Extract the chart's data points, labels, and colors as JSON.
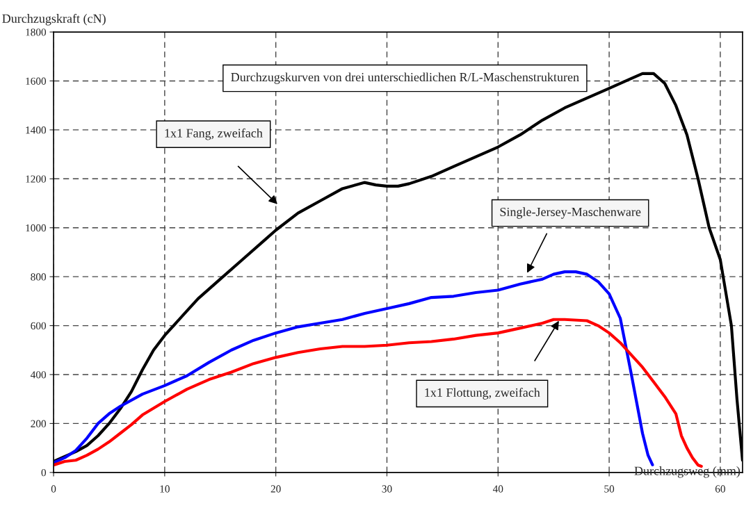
{
  "chart_data": {
    "type": "line",
    "title": "Durchzugskurven von drei unterschiedlichen R/L-Maschenstrukturen",
    "xlabel": "Durchzugsweg (mm)",
    "ylabel": "Durchzugskraft (cN)",
    "xlim": [
      0,
      62
    ],
    "xticks": [
      0,
      10,
      20,
      30,
      40,
      50,
      60
    ],
    "ylim": [
      0,
      1800
    ],
    "yticks": [
      0,
      200,
      400,
      600,
      800,
      1000,
      1200,
      1400,
      1600,
      1800
    ],
    "grid": true,
    "line_style": "solid",
    "marker": "none",
    "series": [
      {
        "color": "#000000",
        "x": [
          0,
          1,
          2,
          3,
          4,
          5,
          6,
          7,
          8,
          9,
          10,
          12,
          13,
          15,
          17,
          19,
          20,
          22,
          24,
          26,
          28,
          29,
          30,
          31,
          32,
          34,
          36,
          38,
          40,
          42,
          44,
          46,
          48,
          50,
          52,
          53,
          54,
          55,
          56,
          57,
          58,
          59,
          60,
          61,
          61.5,
          62
        ],
        "values": [
          45,
          65,
          85,
          110,
          150,
          200,
          260,
          330,
          420,
          500,
          560,
          660,
          710,
          790,
          870,
          950,
          990,
          1060,
          1110,
          1160,
          1185,
          1175,
          1170,
          1170,
          1180,
          1210,
          1250,
          1290,
          1330,
          1380,
          1440,
          1490,
          1530,
          1570,
          1610,
          1630,
          1630,
          1590,
          1500,
          1380,
          1200,
          1000,
          870,
          600,
          300,
          50
        ]
      },
      {
        "color": "#0000ff",
        "x": [
          0,
          1,
          2,
          3,
          4,
          5,
          6,
          8,
          10,
          12,
          14,
          16,
          18,
          20,
          22,
          24,
          26,
          28,
          30,
          32,
          34,
          36,
          38,
          40,
          42,
          44,
          45,
          46,
          47,
          48,
          49,
          50,
          51,
          52,
          53,
          53.5,
          53.9
        ],
        "values": [
          40,
          60,
          90,
          140,
          200,
          240,
          270,
          320,
          355,
          395,
          450,
          500,
          540,
          570,
          595,
          610,
          625,
          650,
          670,
          690,
          715,
          720,
          735,
          745,
          770,
          790,
          810,
          820,
          820,
          810,
          780,
          730,
          630,
          400,
          160,
          70,
          31
        ]
      },
      {
        "color": "#ff0000",
        "x": [
          0,
          1,
          2,
          3,
          4,
          5,
          6,
          7,
          8,
          10,
          12,
          14,
          16,
          18,
          20,
          22,
          24,
          26,
          28,
          30,
          32,
          34,
          36,
          38,
          40,
          42,
          44,
          45,
          46,
          48,
          49,
          50,
          51,
          52,
          53,
          54,
          55,
          56,
          56.5,
          57,
          57.5,
          58,
          58.3
        ],
        "values": [
          30,
          45,
          50,
          70,
          95,
          125,
          160,
          195,
          235,
          290,
          340,
          380,
          410,
          445,
          470,
          490,
          505,
          515,
          515,
          520,
          530,
          535,
          545,
          560,
          570,
          590,
          610,
          625,
          625,
          620,
          600,
          570,
          530,
          480,
          430,
          370,
          310,
          240,
          150,
          100,
          60,
          30,
          25
        ]
      }
    ],
    "annotations": [
      "1x1 Fang, zweifach",
      "Single-Jersey-Maschenware",
      "1x1 Flottung, zweifach"
    ]
  }
}
